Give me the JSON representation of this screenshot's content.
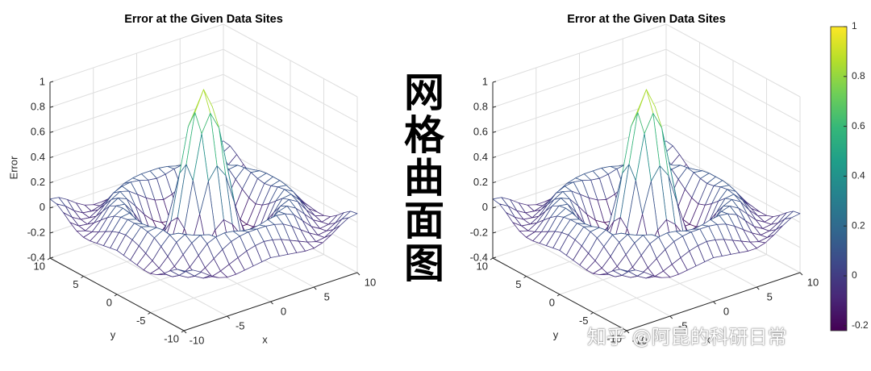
{
  "chart_data": [
    {
      "type": "mesh",
      "title": "Error at the Given Data Sites",
      "xlabel": "x",
      "ylabel": "y",
      "zlabel": "Error",
      "x": [
        -10,
        -9,
        -8,
        -7,
        -6,
        -5,
        -4,
        -3,
        -2,
        -1,
        0,
        1,
        2,
        3,
        4,
        5,
        6,
        7,
        8,
        9,
        10
      ],
      "y": [
        -10,
        -9,
        -8,
        -7,
        -6,
        -5,
        -4,
        -3,
        -2,
        -1,
        0,
        1,
        2,
        3,
        4,
        5,
        6,
        7,
        8,
        9,
        10
      ],
      "z": [
        [
          0.07,
          0.06,
          0.02,
          -0.03,
          -0.07,
          -0.09,
          -0.09,
          -0.08,
          -0.07,
          -0.06,
          -0.05,
          -0.06,
          -0.07,
          -0.08,
          -0.09,
          -0.09,
          -0.07,
          -0.03,
          0.02,
          0.06,
          0.07
        ],
        [
          0.06,
          0.02,
          -0.04,
          -0.08,
          -0.09,
          -0.07,
          -0.04,
          -0.01,
          0.02,
          0.04,
          0.05,
          0.04,
          0.02,
          -0.01,
          -0.04,
          -0.07,
          -0.09,
          -0.08,
          -0.04,
          0.02,
          0.06
        ],
        [
          0.02,
          -0.04,
          -0.08,
          -0.09,
          -0.05,
          0,
          0.05,
          0.09,
          0.11,
          0.12,
          0.12,
          0.12,
          0.11,
          0.09,
          0.05,
          0,
          -0.05,
          -0.09,
          -0.08,
          -0.04,
          0.02
        ],
        [
          -0.03,
          -0.08,
          -0.09,
          -0.05,
          0.02,
          0.09,
          0.12,
          0.13,
          0.12,
          0.1,
          0.09,
          0.1,
          0.12,
          0.13,
          0.12,
          0.09,
          0.02,
          -0.05,
          -0.09,
          -0.08,
          -0.03
        ],
        [
          -0.07,
          -0.09,
          -0.05,
          0.02,
          0.09,
          0.13,
          0.11,
          0.06,
          0.01,
          -0.03,
          -0.05,
          -0.03,
          0.01,
          0.06,
          0.11,
          0.13,
          0.09,
          0.02,
          -0.05,
          -0.09,
          -0.07
        ],
        [
          -0.09,
          -0.07,
          0,
          0.09,
          0.13,
          0.1,
          0.02,
          -0.07,
          -0.14,
          -0.18,
          -0.19,
          -0.18,
          -0.14,
          -0.07,
          0.02,
          0.1,
          0.13,
          0.09,
          0,
          -0.07,
          -0.09
        ],
        [
          -0.09,
          -0.04,
          0.05,
          0.12,
          0.11,
          0.02,
          -0.1,
          -0.19,
          -0.22,
          -0.2,
          -0.19,
          -0.2,
          -0.22,
          -0.19,
          -0.1,
          0.02,
          0.11,
          0.12,
          0.05,
          -0.04,
          -0.09
        ],
        [
          -0.08,
          -0.01,
          0.09,
          0.13,
          0.06,
          -0.07,
          -0.19,
          -0.21,
          -0.12,
          -0.01,
          0.05,
          -0.01,
          -0.12,
          -0.21,
          -0.19,
          -0.07,
          0.06,
          0.13,
          0.09,
          -0.01,
          -0.08
        ],
        [
          -0.07,
          0.02,
          0.11,
          0.12,
          0.01,
          -0.14,
          -0.22,
          -0.12,
          0.11,
          0.35,
          0.45,
          0.35,
          0.11,
          -0.12,
          -0.22,
          -0.14,
          0.01,
          0.12,
          0.11,
          0.02,
          -0.07
        ],
        [
          -0.06,
          0.04,
          0.12,
          0.1,
          -0.03,
          -0.18,
          -0.2,
          -0.01,
          0.35,
          0.7,
          0.84,
          0.7,
          0.35,
          -0.01,
          -0.2,
          -0.18,
          -0.03,
          0.1,
          0.12,
          0.04,
          -0.06
        ],
        [
          -0.05,
          0.05,
          0.12,
          0.09,
          -0.05,
          -0.19,
          -0.19,
          0.05,
          0.45,
          0.84,
          1,
          0.84,
          0.45,
          0.05,
          -0.19,
          -0.19,
          -0.05,
          0.09,
          0.12,
          0.05,
          -0.05
        ],
        [
          -0.06,
          0.04,
          0.12,
          0.1,
          -0.03,
          -0.18,
          -0.2,
          -0.01,
          0.35,
          0.7,
          0.84,
          0.7,
          0.35,
          -0.01,
          -0.2,
          -0.18,
          -0.03,
          0.1,
          0.12,
          0.04,
          -0.06
        ],
        [
          -0.07,
          0.02,
          0.11,
          0.12,
          0.01,
          -0.14,
          -0.22,
          -0.12,
          0.11,
          0.35,
          0.45,
          0.35,
          0.11,
          -0.12,
          -0.22,
          -0.14,
          0.01,
          0.12,
          0.11,
          0.02,
          -0.07
        ],
        [
          -0.08,
          -0.01,
          0.09,
          0.13,
          0.06,
          -0.07,
          -0.19,
          -0.21,
          -0.12,
          -0.01,
          0.05,
          -0.01,
          -0.12,
          -0.21,
          -0.19,
          -0.07,
          0.06,
          0.13,
          0.09,
          -0.01,
          -0.08
        ],
        [
          -0.09,
          -0.04,
          0.05,
          0.12,
          0.11,
          0.02,
          -0.1,
          -0.19,
          -0.22,
          -0.2,
          -0.19,
          -0.2,
          -0.22,
          -0.19,
          -0.1,
          0.02,
          0.11,
          0.12,
          0.05,
          -0.04,
          -0.09
        ],
        [
          -0.09,
          -0.07,
          0,
          0.09,
          0.13,
          0.1,
          0.02,
          -0.07,
          -0.14,
          -0.18,
          -0.19,
          -0.18,
          -0.14,
          -0.07,
          0.02,
          0.1,
          0.13,
          0.09,
          0,
          -0.07,
          -0.09
        ],
        [
          -0.07,
          -0.09,
          -0.05,
          0.02,
          0.09,
          0.13,
          0.11,
          0.06,
          0.01,
          -0.03,
          -0.05,
          -0.03,
          0.01,
          0.06,
          0.11,
          0.13,
          0.09,
          0.02,
          -0.05,
          -0.09,
          -0.07
        ],
        [
          -0.03,
          -0.08,
          -0.09,
          -0.05,
          0.02,
          0.09,
          0.12,
          0.13,
          0.12,
          0.1,
          0.09,
          0.1,
          0.12,
          0.13,
          0.12,
          0.09,
          0.02,
          -0.05,
          -0.09,
          -0.08,
          -0.03
        ],
        [
          0.02,
          -0.04,
          -0.08,
          -0.09,
          -0.05,
          0,
          0.05,
          0.09,
          0.11,
          0.12,
          0.12,
          0.12,
          0.11,
          0.09,
          0.05,
          0,
          -0.05,
          -0.09,
          -0.08,
          -0.04,
          0.02
        ],
        [
          0.06,
          0.02,
          -0.04,
          -0.08,
          -0.09,
          -0.07,
          -0.04,
          -0.01,
          0.02,
          0.04,
          0.05,
          0.04,
          0.02,
          -0.01,
          -0.04,
          -0.07,
          -0.09,
          -0.08,
          -0.04,
          0.02,
          0.06
        ],
        [
          0.07,
          0.06,
          0.02,
          -0.03,
          -0.07,
          -0.09,
          -0.09,
          -0.08,
          -0.07,
          -0.06,
          -0.05,
          -0.06,
          -0.07,
          -0.08,
          -0.09,
          -0.09,
          -0.07,
          -0.03,
          0.02,
          0.06,
          0.07
        ]
      ],
      "xlim": [
        -10,
        10
      ],
      "ylim": [
        -10,
        10
      ],
      "zlim": [
        -0.4,
        1
      ],
      "xticks": [
        -10,
        -5,
        0,
        5,
        10
      ],
      "yticks": [
        -10,
        -5,
        0,
        5,
        10
      ],
      "zticks": [
        -0.4,
        -0.2,
        0,
        0.2,
        0.4,
        0.6,
        0.8,
        1
      ],
      "grid": true,
      "clim": [
        -0.22,
        1
      ],
      "colormap": [
        "#440154",
        "#482878",
        "#3e4989",
        "#31688e",
        "#26828e",
        "#1f9e89",
        "#35b779",
        "#6ece58",
        "#b5de2b",
        "#fde725"
      ]
    },
    {
      "type": "mesh",
      "title": "Error at the Given Data Sites",
      "xlabel": "x",
      "ylabel": "y",
      "x": [
        -10,
        -9,
        -8,
        -7,
        -6,
        -5,
        -4,
        -3,
        -2,
        -1,
        0,
        1,
        2,
        3,
        4,
        5,
        6,
        7,
        8,
        9,
        10
      ],
      "y": [
        -10,
        -9,
        -8,
        -7,
        -6,
        -5,
        -4,
        -3,
        -2,
        -1,
        0,
        1,
        2,
        3,
        4,
        5,
        6,
        7,
        8,
        9,
        10
      ],
      "z": [
        [
          0.07,
          0.06,
          0.02,
          -0.03,
          -0.07,
          -0.09,
          -0.09,
          -0.08,
          -0.07,
          -0.06,
          -0.05,
          -0.06,
          -0.07,
          -0.08,
          -0.09,
          -0.09,
          -0.07,
          -0.03,
          0.02,
          0.06,
          0.07
        ],
        [
          0.06,
          0.02,
          -0.04,
          -0.08,
          -0.09,
          -0.07,
          -0.04,
          -0.01,
          0.02,
          0.04,
          0.05,
          0.04,
          0.02,
          -0.01,
          -0.04,
          -0.07,
          -0.09,
          -0.08,
          -0.04,
          0.02,
          0.06
        ],
        [
          0.02,
          -0.04,
          -0.08,
          -0.09,
          -0.05,
          0,
          0.05,
          0.09,
          0.11,
          0.12,
          0.12,
          0.12,
          0.11,
          0.09,
          0.05,
          0,
          -0.05,
          -0.09,
          -0.08,
          -0.04,
          0.02
        ],
        [
          -0.03,
          -0.08,
          -0.09,
          -0.05,
          0.02,
          0.09,
          0.12,
          0.13,
          0.12,
          0.1,
          0.09,
          0.1,
          0.12,
          0.13,
          0.12,
          0.09,
          0.02,
          -0.05,
          -0.09,
          -0.08,
          -0.03
        ],
        [
          -0.07,
          -0.09,
          -0.05,
          0.02,
          0.09,
          0.13,
          0.11,
          0.06,
          0.01,
          -0.03,
          -0.05,
          -0.03,
          0.01,
          0.06,
          0.11,
          0.13,
          0.09,
          0.02,
          -0.05,
          -0.09,
          -0.07
        ],
        [
          -0.09,
          -0.07,
          0,
          0.09,
          0.13,
          0.1,
          0.02,
          -0.07,
          -0.14,
          -0.18,
          -0.19,
          -0.18,
          -0.14,
          -0.07,
          0.02,
          0.1,
          0.13,
          0.09,
          0,
          -0.07,
          -0.09
        ],
        [
          -0.09,
          -0.04,
          0.05,
          0.12,
          0.11,
          0.02,
          -0.1,
          -0.19,
          -0.22,
          -0.2,
          -0.19,
          -0.2,
          -0.22,
          -0.19,
          -0.1,
          0.02,
          0.11,
          0.12,
          0.05,
          -0.04,
          -0.09
        ],
        [
          -0.08,
          -0.01,
          0.09,
          0.13,
          0.06,
          -0.07,
          -0.19,
          -0.21,
          -0.12,
          -0.01,
          0.05,
          -0.01,
          -0.12,
          -0.21,
          -0.19,
          -0.07,
          0.06,
          0.13,
          0.09,
          -0.01,
          -0.08
        ],
        [
          -0.07,
          0.02,
          0.11,
          0.12,
          0.01,
          -0.14,
          -0.22,
          -0.12,
          0.11,
          0.35,
          0.45,
          0.35,
          0.11,
          -0.12,
          -0.22,
          -0.14,
          0.01,
          0.12,
          0.11,
          0.02,
          -0.07
        ],
        [
          -0.06,
          0.04,
          0.12,
          0.1,
          -0.03,
          -0.18,
          -0.2,
          -0.01,
          0.35,
          0.7,
          0.84,
          0.7,
          0.35,
          -0.01,
          -0.2,
          -0.18,
          -0.03,
          0.1,
          0.12,
          0.04,
          -0.06
        ],
        [
          -0.05,
          0.05,
          0.12,
          0.09,
          -0.05,
          -0.19,
          -0.19,
          0.05,
          0.45,
          0.84,
          1,
          0.84,
          0.45,
          0.05,
          -0.19,
          -0.19,
          -0.05,
          0.09,
          0.12,
          0.05,
          -0.05
        ],
        [
          -0.06,
          0.04,
          0.12,
          0.1,
          -0.03,
          -0.18,
          -0.2,
          -0.01,
          0.35,
          0.7,
          0.84,
          0.7,
          0.35,
          -0.01,
          -0.2,
          -0.18,
          -0.03,
          0.1,
          0.12,
          0.04,
          -0.06
        ],
        [
          -0.07,
          0.02,
          0.11,
          0.12,
          0.01,
          -0.14,
          -0.22,
          -0.12,
          0.11,
          0.35,
          0.45,
          0.35,
          0.11,
          -0.12,
          -0.22,
          -0.14,
          0.01,
          0.12,
          0.11,
          0.02,
          -0.07
        ],
        [
          -0.08,
          -0.01,
          0.09,
          0.13,
          0.06,
          -0.07,
          -0.19,
          -0.21,
          -0.12,
          -0.01,
          0.05,
          -0.01,
          -0.12,
          -0.21,
          -0.19,
          -0.07,
          0.06,
          0.13,
          0.09,
          -0.01,
          -0.08
        ],
        [
          -0.09,
          -0.04,
          0.05,
          0.12,
          0.11,
          0.02,
          -0.1,
          -0.19,
          -0.22,
          -0.2,
          -0.19,
          -0.2,
          -0.22,
          -0.19,
          -0.1,
          0.02,
          0.11,
          0.12,
          0.05,
          -0.04,
          -0.09
        ],
        [
          -0.09,
          -0.07,
          0,
          0.09,
          0.13,
          0.1,
          0.02,
          -0.07,
          -0.14,
          -0.18,
          -0.19,
          -0.18,
          -0.14,
          -0.07,
          0.02,
          0.1,
          0.13,
          0.09,
          0,
          -0.07,
          -0.09
        ],
        [
          -0.07,
          -0.09,
          -0.05,
          0.02,
          0.09,
          0.13,
          0.11,
          0.06,
          0.01,
          -0.03,
          -0.05,
          -0.03,
          0.01,
          0.06,
          0.11,
          0.13,
          0.09,
          0.02,
          -0.05,
          -0.09,
          -0.07
        ],
        [
          -0.03,
          -0.08,
          -0.09,
          -0.05,
          0.02,
          0.09,
          0.12,
          0.13,
          0.12,
          0.1,
          0.09,
          0.1,
          0.12,
          0.13,
          0.12,
          0.09,
          0.02,
          -0.05,
          -0.09,
          -0.08,
          -0.03
        ],
        [
          0.02,
          -0.04,
          -0.08,
          -0.09,
          -0.05,
          0,
          0.05,
          0.09,
          0.11,
          0.12,
          0.12,
          0.12,
          0.11,
          0.09,
          0.05,
          0,
          -0.05,
          -0.09,
          -0.08,
          -0.04,
          0.02
        ],
        [
          0.06,
          0.02,
          -0.04,
          -0.08,
          -0.09,
          -0.07,
          -0.04,
          -0.01,
          0.02,
          0.04,
          0.05,
          0.04,
          0.02,
          -0.01,
          -0.04,
          -0.07,
          -0.09,
          -0.08,
          -0.04,
          0.02,
          0.06
        ],
        [
          0.07,
          0.06,
          0.02,
          -0.03,
          -0.07,
          -0.09,
          -0.09,
          -0.08,
          -0.07,
          -0.06,
          -0.05,
          -0.06,
          -0.07,
          -0.08,
          -0.09,
          -0.09,
          -0.07,
          -0.03,
          0.02,
          0.06,
          0.07
        ]
      ],
      "xlim": [
        -10,
        10
      ],
      "ylim": [
        -10,
        10
      ],
      "zlim": [
        -0.4,
        1
      ],
      "xticks": [
        -10,
        -5,
        0,
        5,
        10
      ],
      "yticks": [
        -10,
        -5,
        0,
        5,
        10
      ],
      "zticks": [
        -0.4,
        -0.2,
        0,
        0.2,
        0.4,
        0.6,
        0.8,
        1
      ],
      "grid": true,
      "clim": [
        -0.22,
        1
      ],
      "colormap": [
        "#440154",
        "#482878",
        "#3e4989",
        "#31688e",
        "#26828e",
        "#1f9e89",
        "#35b779",
        "#6ece58",
        "#b5de2b",
        "#fde725"
      ],
      "colorbar": {
        "ticks": [
          -0.2,
          0,
          0.2,
          0.4,
          0.6,
          0.8,
          1
        ]
      }
    }
  ],
  "side_title": "网格曲面图",
  "watermark": "知乎 @阿昆的科研日常"
}
